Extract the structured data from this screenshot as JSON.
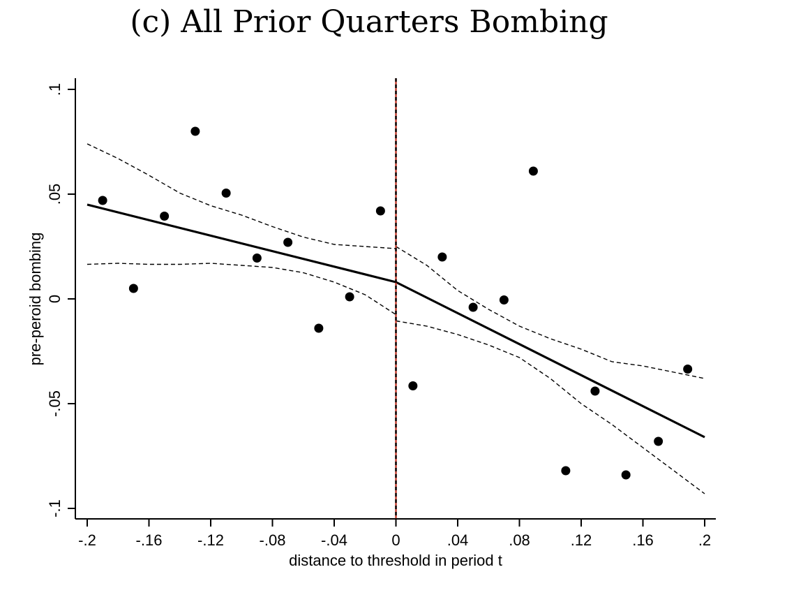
{
  "chart_data": {
    "type": "scatter",
    "title": "(c) All Prior Quarters Bombing",
    "xlabel": "distance to threshold in period t",
    "ylabel": "pre-peroid bombing",
    "xlim": [
      -0.2,
      0.2
    ],
    "ylim": [
      -0.1,
      0.1
    ],
    "x_ticks": [
      -0.2,
      -0.16,
      -0.12,
      -0.08,
      -0.04,
      0,
      0.04,
      0.08,
      0.12,
      0.16,
      0.2
    ],
    "x_tick_labels": [
      "-.2",
      "-.16",
      "-.12",
      "-.08",
      "-.04",
      "0",
      ".04",
      ".08",
      ".12",
      ".16",
      ".2"
    ],
    "y_ticks": [
      -0.1,
      -0.05,
      0,
      0.05,
      0.1
    ],
    "y_tick_labels": [
      "-.1",
      "-.05",
      "0",
      ".05",
      ".1"
    ],
    "grid": false,
    "legend": "none",
    "threshold_x": 0,
    "points": {
      "x": [
        -0.19,
        -0.17,
        -0.15,
        -0.13,
        -0.11,
        -0.09,
        -0.07,
        -0.05,
        -0.03,
        -0.01,
        0.011,
        0.03,
        0.05,
        0.07,
        0.089,
        0.11,
        0.129,
        0.149,
        0.17,
        0.189
      ],
      "y": [
        0.047,
        0.005,
        0.0395,
        0.08,
        0.0505,
        0.0195,
        0.027,
        -0.014,
        0.001,
        0.042,
        -0.0415,
        0.02,
        -0.004,
        -0.0005,
        0.061,
        -0.082,
        -0.044,
        -0.084,
        -0.068,
        -0.0335
      ]
    },
    "fit_left": {
      "x": [
        -0.2,
        0
      ],
      "y": [
        0.045,
        0.008
      ]
    },
    "fit_right": {
      "x": [
        0,
        0.2
      ],
      "y": [
        0.008,
        -0.066
      ]
    },
    "ci_left_upper": {
      "x": [
        -0.2,
        -0.18,
        -0.16,
        -0.14,
        -0.12,
        -0.1,
        -0.08,
        -0.06,
        -0.04,
        -0.02,
        0
      ],
      "y": [
        0.074,
        0.067,
        0.059,
        0.0505,
        0.0445,
        0.04,
        0.0345,
        0.0295,
        0.026,
        0.025,
        0.024
      ]
    },
    "ci_left_lower": {
      "x": [
        -0.2,
        -0.18,
        -0.16,
        -0.14,
        -0.12,
        -0.1,
        -0.08,
        -0.06,
        -0.04,
        -0.02,
        0
      ],
      "y": [
        0.0165,
        0.017,
        0.0165,
        0.0165,
        0.017,
        0.016,
        0.015,
        0.0125,
        0.008,
        0.002,
        -0.0075
      ]
    },
    "ci_right_upper": {
      "x": [
        0,
        0.02,
        0.04,
        0.06,
        0.08,
        0.1,
        0.12,
        0.14,
        0.16,
        0.18,
        0.2
      ],
      "y": [
        0.025,
        0.016,
        0.004,
        -0.005,
        -0.013,
        -0.019,
        -0.024,
        -0.03,
        -0.032,
        -0.035,
        -0.038
      ]
    },
    "ci_right_lower": {
      "x": [
        0,
        0.02,
        0.04,
        0.06,
        0.08,
        0.1,
        0.12,
        0.14,
        0.16,
        0.18,
        0.2
      ],
      "y": [
        -0.0105,
        -0.013,
        -0.017,
        -0.022,
        -0.028,
        -0.038,
        -0.05,
        -0.06,
        -0.071,
        -0.082,
        -0.093
      ]
    },
    "colors": {
      "points": "#000000",
      "fit": "#000000",
      "ci": "#000000",
      "threshold_dash_a": "#000000",
      "threshold_dash_b": "#c0392b"
    }
  }
}
